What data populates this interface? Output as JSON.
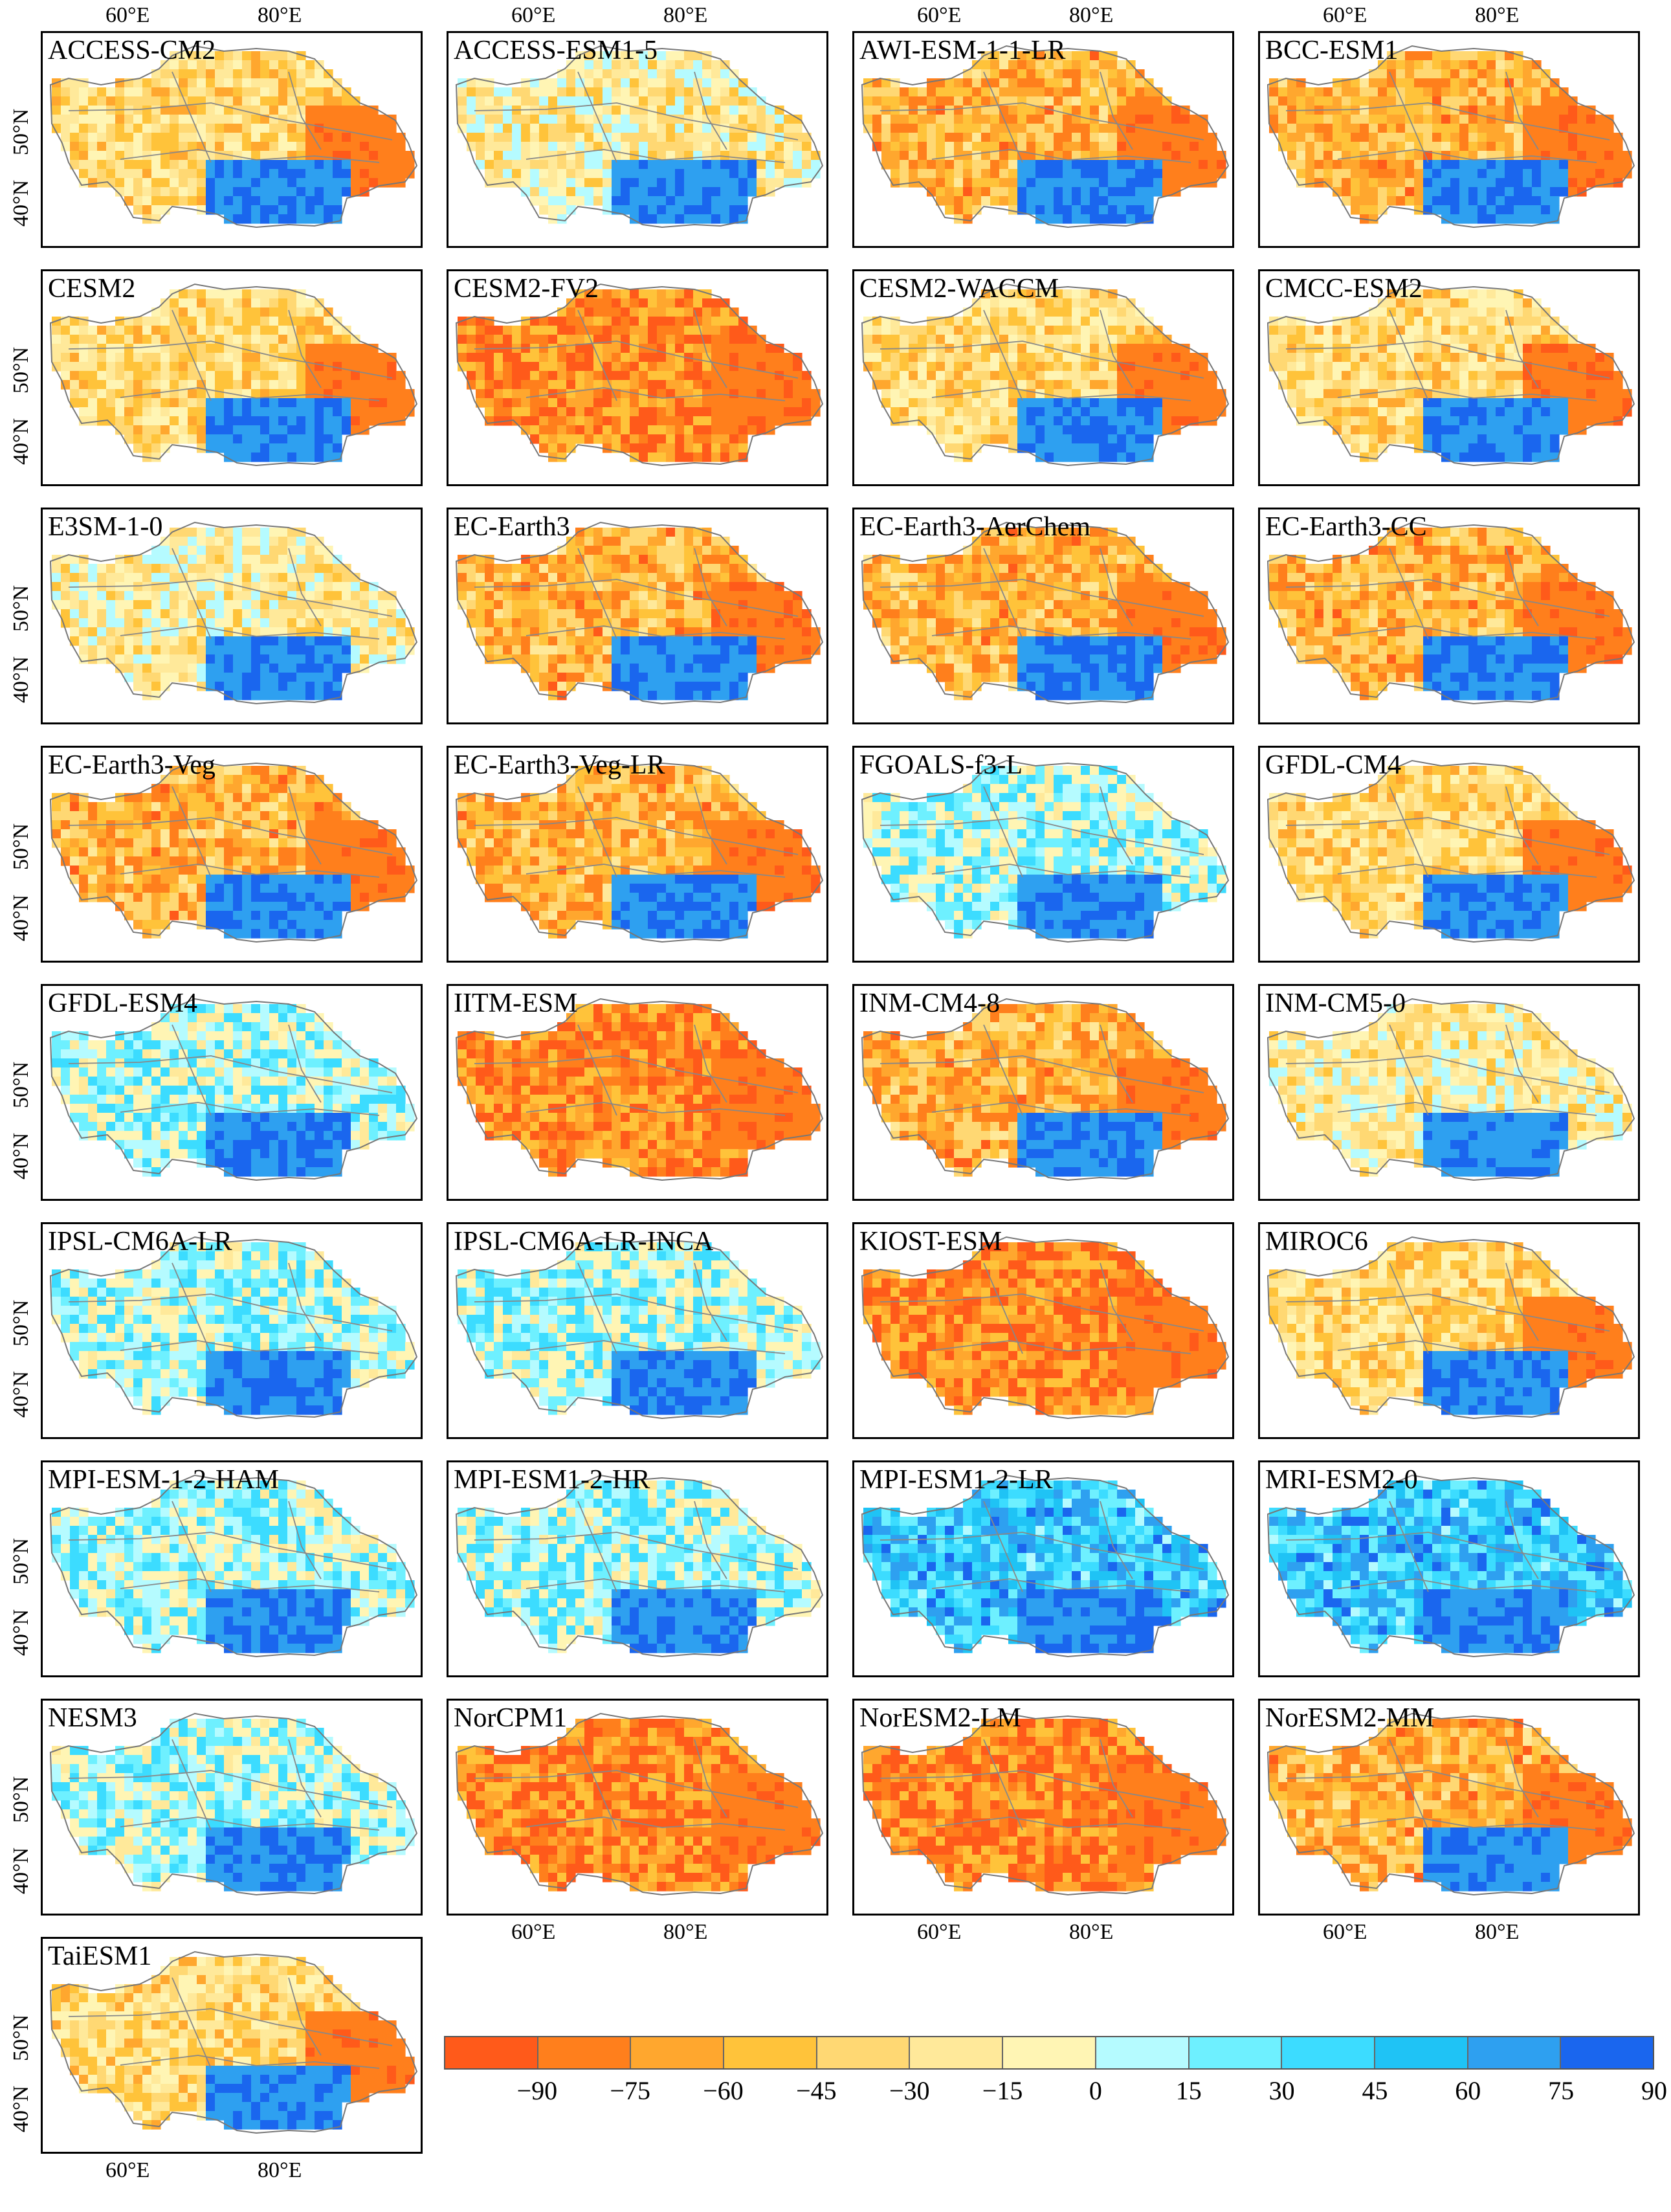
{
  "figure": {
    "lon_ticks": [
      "60°E",
      "80°E"
    ],
    "lat_ticks": [
      "50°N",
      "40°N"
    ]
  },
  "colors": {
    "bins": [
      "#ff5a1a",
      "#ff7f1c",
      "#ffa72e",
      "#ffc33a",
      "#ffd873",
      "#ffe99a",
      "#fff5b4",
      "#b5fbff",
      "#6ef0ff",
      "#3cdcff",
      "#1fc3f5",
      "#2ea0f0",
      "#1a66ee"
    ]
  },
  "colorbar": {
    "labels": [
      "−90",
      "−75",
      "−60",
      "−45",
      "−30",
      "−15",
      "0",
      "15",
      "30",
      "45",
      "60",
      "75",
      "90"
    ]
  },
  "panels": [
    {
      "name": "ACCESS-CM2",
      "pattern": "mixed"
    },
    {
      "name": "ACCESS-ESM1-5",
      "pattern": "light"
    },
    {
      "name": "AWI-ESM-1-1-LR",
      "pattern": "warm"
    },
    {
      "name": "BCC-ESM1",
      "pattern": "warm"
    },
    {
      "name": "CESM2",
      "pattern": "mixed"
    },
    {
      "name": "CESM2-FV2",
      "pattern": "hot"
    },
    {
      "name": "CESM2-WACCM",
      "pattern": "mixed"
    },
    {
      "name": "CMCC-ESM2",
      "pattern": "mixed"
    },
    {
      "name": "E3SM-1-0",
      "pattern": "light"
    },
    {
      "name": "EC-Earth3",
      "pattern": "warm"
    },
    {
      "name": "EC-Earth3-AerChem",
      "pattern": "warm"
    },
    {
      "name": "EC-Earth3-CC",
      "pattern": "warm"
    },
    {
      "name": "EC-Earth3-Veg",
      "pattern": "warm"
    },
    {
      "name": "EC-Earth3-Veg-LR",
      "pattern": "warm"
    },
    {
      "name": "FGOALS-f3-L",
      "pattern": "cool"
    },
    {
      "name": "GFDL-CM4",
      "pattern": "mixed"
    },
    {
      "name": "GFDL-ESM4",
      "pattern": "cool"
    },
    {
      "name": "IITM-ESM",
      "pattern": "hot"
    },
    {
      "name": "INM-CM4-8",
      "pattern": "warm"
    },
    {
      "name": "INM-CM5-0",
      "pattern": "light"
    },
    {
      "name": "IPSL-CM6A-LR",
      "pattern": "cool"
    },
    {
      "name": "IPSL-CM6A-LR-INCA",
      "pattern": "cool"
    },
    {
      "name": "KIOST-ESM",
      "pattern": "hot"
    },
    {
      "name": "MIROC6",
      "pattern": "mixed"
    },
    {
      "name": "MPI-ESM-1-2-HAM",
      "pattern": "cool"
    },
    {
      "name": "MPI-ESM1-2-HR",
      "pattern": "cool"
    },
    {
      "name": "MPI-ESM1-2-LR",
      "pattern": "cold"
    },
    {
      "name": "MRI-ESM2-0",
      "pattern": "cold"
    },
    {
      "name": "NESM3",
      "pattern": "cool"
    },
    {
      "name": "NorCPM1",
      "pattern": "hot"
    },
    {
      "name": "NorESM2-LM",
      "pattern": "hot"
    },
    {
      "name": "NorESM2-MM",
      "pattern": "warm"
    },
    {
      "name": "TaiESM1",
      "pattern": "mixed"
    }
  ]
}
